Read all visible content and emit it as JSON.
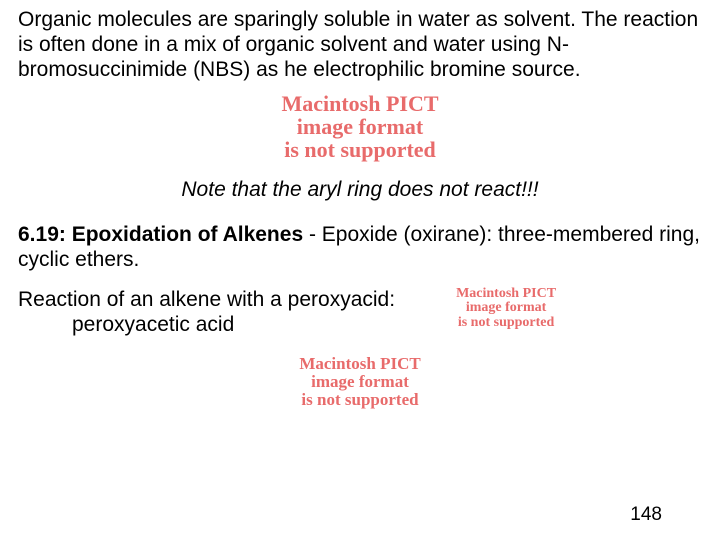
{
  "intro": "Organic molecules are sparingly soluble in water as solvent. The reaction is often done in a mix of organic solvent and water using N-bromosuccinimide (NBS) as he electrophilic bromine source.",
  "pict": {
    "l1": "Macintosh PICT",
    "l2": "image format",
    "l3": "is not supported"
  },
  "note": "Note that the aryl ring does not react!!!",
  "section": {
    "head": "6.19: Epoxidation of Alkenes",
    "body": " - Epoxide (oxirane):  three-membered ring, cyclic ethers."
  },
  "reaction": {
    "line1": "Reaction of an alkene with a peroxyacid:",
    "line2": "peroxyacetic acid"
  },
  "page": "148",
  "colors": {
    "pict_text": "#e86b6b",
    "text": "#000000",
    "bg": "#ffffff"
  }
}
